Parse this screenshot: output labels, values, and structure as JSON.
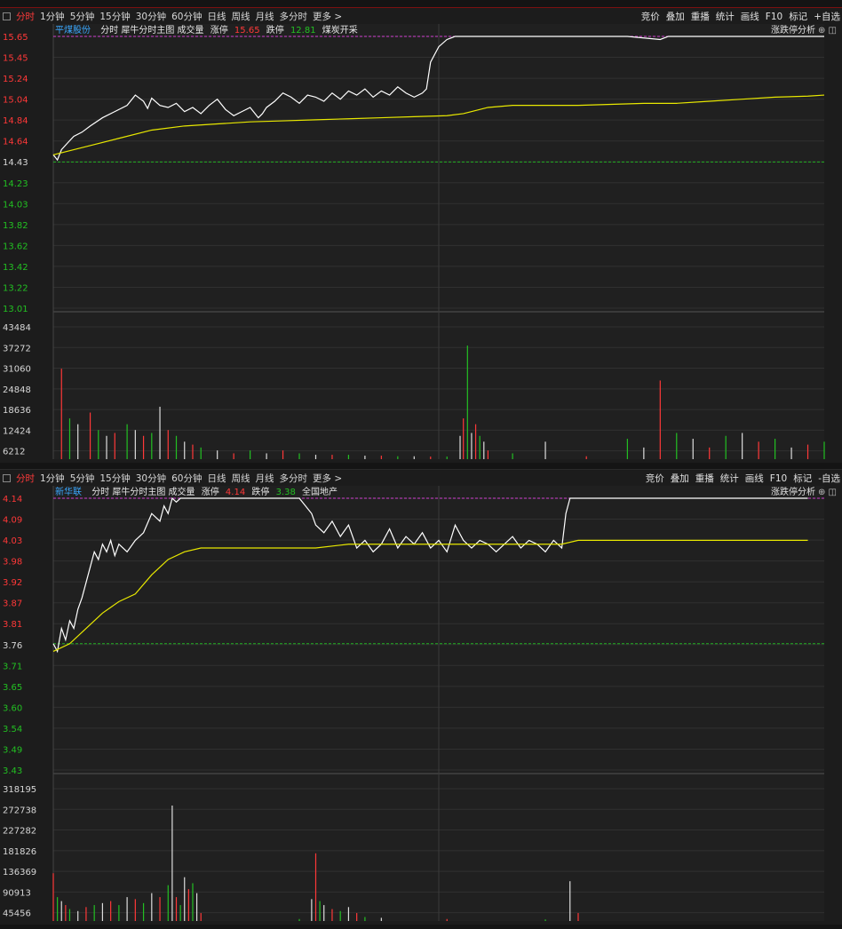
{
  "toolbar": {
    "left_items": [
      "分时",
      "1分钟",
      "5分钟",
      "15分钟",
      "30分钟",
      "60分钟",
      "日线",
      "周线",
      "月线",
      "多分时",
      "更多 >"
    ],
    "right_items": [
      "竞价",
      "叠加",
      "重播",
      "统计",
      "画线",
      "F10",
      "标记",
      "+自选"
    ],
    "top_right_items_panel2": [
      "竞价",
      "叠加",
      "重播",
      "统计",
      "画线",
      "F10",
      "标记",
      "-自选"
    ]
  },
  "colors": {
    "up": "#ff3838",
    "down": "#22c022",
    "price_line": "#ffffff",
    "avg_line": "#e8e800",
    "limit_line": "#d040d0",
    "prev_close_line": "#22b022"
  },
  "panels": [
    {
      "stock_name": "平煤股份",
      "chart_label": "分时 犀牛分时主图 成交量",
      "limit_up_label": "涨停",
      "limit_up_value": "15.65",
      "limit_down_label": "跌停",
      "limit_down_value": "12.81",
      "sector": "煤炭开采",
      "analysis_label": "涨跌停分析",
      "price_ticks": [
        "15.65",
        "15.45",
        "15.24",
        "15.04",
        "14.84",
        "14.64",
        "14.43",
        "14.23",
        "14.03",
        "13.82",
        "13.62",
        "13.42",
        "13.22",
        "13.01"
      ],
      "volume_ticks": [
        "43484",
        "37272",
        "31060",
        "24848",
        "18636",
        "12424",
        "6212"
      ]
    },
    {
      "stock_name": "新华联",
      "chart_label": "分时 犀牛分时主图 成交量",
      "limit_up_label": "涨停",
      "limit_up_value": "4.14",
      "limit_down_label": "跌停",
      "limit_down_value": "3.38",
      "sector": "全国地产",
      "analysis_label": "涨跌停分析",
      "price_ticks": [
        "4.14",
        "4.09",
        "4.03",
        "3.98",
        "3.92",
        "3.87",
        "3.81",
        "3.76",
        "3.71",
        "3.65",
        "3.60",
        "3.54",
        "3.49",
        "3.43"
      ],
      "volume_ticks": [
        "318195",
        "272738",
        "227282",
        "181826",
        "136369",
        "90913",
        "45456"
      ]
    }
  ],
  "chart_data": [
    {
      "type": "line",
      "title": "平煤股份",
      "ylim": [
        13.01,
        15.65
      ],
      "prev_close": 14.43,
      "limit_up": 15.65,
      "series": [
        {
          "name": "price",
          "x": [
            0,
            5,
            10,
            18,
            25,
            35,
            45,
            60,
            75,
            90,
            100,
            110,
            115,
            120,
            130,
            140,
            150,
            160,
            170,
            180,
            190,
            200,
            210,
            220,
            230,
            240,
            250,
            255,
            260,
            270,
            280,
            290,
            300,
            310,
            320,
            330,
            340,
            350,
            360,
            370,
            380,
            390,
            400,
            410,
            420,
            430,
            440,
            450,
            455,
            460,
            470,
            480,
            490,
            500,
            510,
            520,
            530,
            540,
            580,
            620,
            660,
            700,
            740,
            750,
            760,
            780,
            800,
            820,
            840,
            860,
            880,
            900,
            920,
            940
          ],
          "values": [
            14.5,
            14.45,
            14.55,
            14.62,
            14.68,
            14.72,
            14.78,
            14.86,
            14.92,
            14.98,
            15.08,
            15.02,
            14.95,
            15.05,
            14.98,
            14.96,
            15.0,
            14.92,
            14.96,
            14.9,
            14.98,
            15.04,
            14.94,
            14.88,
            14.92,
            14.96,
            14.86,
            14.9,
            14.96,
            15.02,
            15.1,
            15.06,
            15.0,
            15.08,
            15.06,
            15.02,
            15.1,
            15.04,
            15.12,
            15.08,
            15.14,
            15.06,
            15.12,
            15.08,
            15.16,
            15.1,
            15.06,
            15.1,
            15.14,
            15.4,
            15.55,
            15.62,
            15.65,
            15.65,
            15.65,
            15.65,
            15.65,
            15.65,
            15.65,
            15.65,
            15.65,
            15.65,
            15.62,
            15.65,
            15.65,
            15.65,
            15.65,
            15.65,
            15.65,
            15.65,
            15.65,
            15.65,
            15.65,
            15.65
          ]
        },
        {
          "name": "avg",
          "x": [
            0,
            40,
            80,
            120,
            160,
            200,
            240,
            280,
            320,
            360,
            400,
            440,
            480,
            500,
            530,
            560,
            600,
            640,
            680,
            720,
            760,
            800,
            840,
            880,
            920,
            940
          ],
          "values": [
            14.5,
            14.58,
            14.66,
            14.74,
            14.78,
            14.8,
            14.82,
            14.83,
            14.84,
            14.85,
            14.86,
            14.87,
            14.88,
            14.9,
            14.96,
            14.98,
            14.98,
            14.98,
            14.99,
            15.0,
            15.0,
            15.02,
            15.04,
            15.06,
            15.07,
            15.08
          ]
        }
      ],
      "volume": {
        "ylim": [
          0,
          49696
        ],
        "x": [
          10,
          20,
          30,
          45,
          55,
          65,
          75,
          90,
          100,
          110,
          120,
          130,
          140,
          150,
          160,
          170,
          180,
          200,
          220,
          240,
          260,
          280,
          300,
          320,
          340,
          360,
          380,
          400,
          420,
          440,
          460,
          480,
          496,
          500,
          505,
          510,
          515,
          520,
          525,
          530,
          560,
          600,
          650,
          700,
          720,
          740,
          760,
          780,
          800,
          820,
          840,
          860,
          880,
          900,
          920,
          940
        ],
        "values": [
          31060,
          14000,
          12000,
          16000,
          10000,
          8000,
          9000,
          12000,
          10000,
          8000,
          9000,
          18000,
          10000,
          8000,
          6000,
          5000,
          4000,
          3000,
          2000,
          3000,
          2000,
          3000,
          2000,
          1500,
          1500,
          1500,
          1200,
          1200,
          1000,
          1000,
          900,
          900,
          8000,
          14000,
          39000,
          9000,
          12000,
          8000,
          6000,
          3000,
          2000,
          6000,
          1000,
          7000,
          4000,
          27000,
          9000,
          7000,
          4000,
          8000,
          9000,
          6000,
          7000,
          4000,
          5000,
          6000
        ]
      }
    },
    {
      "type": "line",
      "title": "新华联",
      "ylim": [
        3.43,
        4.14
      ],
      "prev_close": 3.76,
      "limit_up": 4.14,
      "series": [
        {
          "name": "price",
          "x": [
            0,
            5,
            10,
            15,
            20,
            25,
            30,
            35,
            40,
            45,
            50,
            55,
            60,
            65,
            70,
            75,
            80,
            90,
            100,
            110,
            120,
            130,
            135,
            140,
            145,
            150,
            155,
            160,
            170,
            200,
            250,
            300,
            315,
            320,
            330,
            340,
            350,
            360,
            370,
            380,
            390,
            400,
            410,
            420,
            430,
            440,
            450,
            460,
            470,
            480,
            490,
            500,
            510,
            520,
            530,
            540,
            550,
            560,
            570,
            580,
            590,
            600,
            610,
            620,
            625,
            630,
            700,
            800,
            920
          ],
          "values": [
            3.76,
            3.74,
            3.8,
            3.77,
            3.82,
            3.8,
            3.85,
            3.88,
            3.92,
            3.96,
            4.0,
            3.98,
            4.02,
            4.0,
            4.03,
            3.99,
            4.02,
            4.0,
            4.03,
            4.05,
            4.1,
            4.08,
            4.12,
            4.1,
            4.14,
            4.13,
            4.14,
            4.14,
            4.14,
            4.14,
            4.14,
            4.14,
            4.1,
            4.07,
            4.05,
            4.08,
            4.04,
            4.07,
            4.01,
            4.03,
            4.0,
            4.02,
            4.06,
            4.01,
            4.04,
            4.02,
            4.05,
            4.01,
            4.03,
            4.0,
            4.07,
            4.03,
            4.01,
            4.03,
            4.02,
            4.0,
            4.02,
            4.04,
            4.01,
            4.03,
            4.02,
            4.0,
            4.03,
            4.01,
            4.1,
            4.14,
            4.14,
            4.14,
            4.14
          ]
        },
        {
          "name": "avg",
          "x": [
            0,
            20,
            40,
            60,
            80,
            100,
            120,
            140,
            160,
            180,
            200,
            260,
            320,
            360,
            400,
            500,
            600,
            620,
            640,
            700,
            800,
            920
          ],
          "values": [
            3.74,
            3.76,
            3.8,
            3.84,
            3.87,
            3.89,
            3.94,
            3.98,
            4.0,
            4.01,
            4.01,
            4.01,
            4.01,
            4.02,
            4.02,
            4.02,
            4.02,
            4.02,
            4.03,
            4.03,
            4.03,
            4.03
          ]
        }
      ],
      "volume": {
        "ylim": [
          0,
          363651
        ],
        "x": [
          0,
          5,
          10,
          15,
          20,
          30,
          40,
          50,
          60,
          70,
          80,
          90,
          100,
          110,
          120,
          130,
          140,
          145,
          150,
          155,
          160,
          165,
          170,
          175,
          180,
          300,
          315,
          320,
          325,
          330,
          340,
          350,
          360,
          370,
          380,
          400,
          480,
          600,
          630,
          640
        ],
        "values": [
          120000,
          60000,
          50000,
          40000,
          30000,
          25000,
          35000,
          40000,
          45000,
          50000,
          40000,
          60000,
          55000,
          45000,
          70000,
          60000,
          90000,
          290000,
          60000,
          40000,
          110000,
          80000,
          95000,
          70000,
          20000,
          5000,
          55000,
          170000,
          50000,
          40000,
          30000,
          25000,
          35000,
          20000,
          10000,
          8000,
          5000,
          4000,
          100000,
          20000
        ]
      }
    }
  ]
}
